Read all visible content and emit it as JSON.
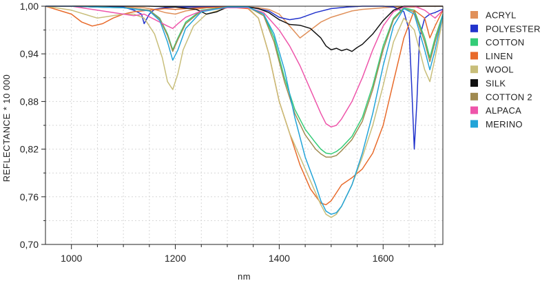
{
  "chart_data": {
    "type": "line",
    "xlabel": "nm",
    "ylabel": "REFLECTANCE * 10 000",
    "xlim": [
      950,
      1715
    ],
    "ylim": [
      0.7,
      1.0
    ],
    "xticks": [
      1000,
      1200,
      1400,
      1600
    ],
    "xtick_labels": [
      "1000",
      "1200",
      "1400",
      "1600"
    ],
    "yticks": [
      0.7,
      0.76,
      0.82,
      0.88,
      0.94,
      1.0
    ],
    "ytick_labels": [
      "0,70",
      "0,76",
      "0,82",
      "0,88",
      "0,94",
      "1,00"
    ],
    "grid": true,
    "legend_position": "right",
    "series": [
      {
        "name": "ACRYL",
        "color": "#e0905a",
        "x": [
          950,
          1000,
          1050,
          1100,
          1140,
          1160,
          1180,
          1200,
          1220,
          1260,
          1300,
          1340,
          1360,
          1380,
          1400,
          1420,
          1440,
          1460,
          1480,
          1500,
          1520,
          1540,
          1560,
          1580,
          1600,
          1620,
          1640,
          1660,
          1680,
          1700,
          1715
        ],
        "y": [
          1.0,
          1.0,
          1.0,
          0.999,
          0.998,
          0.996,
          0.992,
          0.99,
          0.994,
          0.998,
          0.999,
          0.999,
          0.998,
          0.996,
          0.99,
          0.975,
          0.96,
          0.97,
          0.98,
          0.986,
          0.99,
          0.994,
          0.996,
          0.997,
          0.998,
          0.999,
          0.999,
          0.999,
          1.0,
          1.0,
          1.0
        ]
      },
      {
        "name": "POLYESTER",
        "color": "#2233cc",
        "x": [
          950,
          1000,
          1050,
          1100,
          1120,
          1135,
          1140,
          1150,
          1160,
          1180,
          1200,
          1220,
          1240,
          1300,
          1350,
          1380,
          1400,
          1420,
          1440,
          1470,
          1500,
          1530,
          1560,
          1600,
          1620,
          1640,
          1650,
          1655,
          1660,
          1665,
          1670,
          1680,
          1690,
          1700,
          1710,
          1715
        ],
        "y": [
          1.0,
          1.0,
          0.999,
          0.999,
          0.995,
          0.99,
          0.978,
          0.99,
          0.996,
          0.998,
          0.999,
          0.999,
          0.999,
          0.999,
          0.998,
          0.994,
          0.986,
          0.983,
          0.985,
          0.992,
          0.997,
          0.999,
          1.0,
          1.0,
          0.999,
          0.993,
          0.97,
          0.9,
          0.82,
          0.88,
          0.96,
          0.985,
          0.99,
          0.992,
          0.995,
          0.996
        ]
      },
      {
        "name": "COTTON",
        "color": "#33cc77",
        "x": [
          950,
          1000,
          1050,
          1100,
          1150,
          1170,
          1185,
          1195,
          1205,
          1220,
          1250,
          1300,
          1340,
          1370,
          1390,
          1410,
          1430,
          1450,
          1470,
          1480,
          1490,
          1500,
          1510,
          1520,
          1540,
          1560,
          1580,
          1600,
          1620,
          1640,
          1660,
          1680,
          1690,
          1700,
          1715
        ],
        "y": [
          1.0,
          1.0,
          0.999,
          0.998,
          0.995,
          0.985,
          0.965,
          0.945,
          0.96,
          0.98,
          0.995,
          0.999,
          0.999,
          0.99,
          0.96,
          0.91,
          0.87,
          0.845,
          0.828,
          0.82,
          0.815,
          0.814,
          0.817,
          0.822,
          0.836,
          0.86,
          0.9,
          0.95,
          0.985,
          0.998,
          0.995,
          0.96,
          0.935,
          0.96,
          0.99
        ]
      },
      {
        "name": "LINEN",
        "color": "#e86a2a",
        "x": [
          950,
          1000,
          1020,
          1040,
          1060,
          1080,
          1100,
          1120,
          1150,
          1180,
          1200,
          1220,
          1250,
          1300,
          1340,
          1360,
          1380,
          1400,
          1420,
          1440,
          1460,
          1480,
          1490,
          1500,
          1510,
          1520,
          1540,
          1560,
          1580,
          1600,
          1620,
          1640,
          1660,
          1680,
          1690,
          1700,
          1715
        ],
        "y": [
          1.0,
          0.99,
          0.98,
          0.975,
          0.978,
          0.985,
          0.99,
          0.993,
          0.995,
          0.997,
          0.996,
          0.997,
          0.998,
          0.999,
          0.997,
          0.985,
          0.94,
          0.88,
          0.84,
          0.8,
          0.77,
          0.752,
          0.75,
          0.755,
          0.765,
          0.775,
          0.784,
          0.795,
          0.815,
          0.85,
          0.905,
          0.96,
          0.995,
          0.985,
          0.96,
          0.975,
          0.995
        ]
      },
      {
        "name": "WOOL",
        "color": "#c8be7a",
        "x": [
          950,
          1000,
          1050,
          1100,
          1120,
          1140,
          1160,
          1175,
          1185,
          1195,
          1205,
          1215,
          1235,
          1260,
          1300,
          1340,
          1360,
          1380,
          1400,
          1420,
          1440,
          1460,
          1480,
          1490,
          1500,
          1510,
          1520,
          1540,
          1560,
          1580,
          1600,
          1620,
          1640,
          1660,
          1680,
          1690,
          1700,
          1715
        ],
        "y": [
          1.0,
          0.995,
          0.985,
          0.99,
          0.99,
          0.985,
          0.965,
          0.935,
          0.905,
          0.895,
          0.915,
          0.945,
          0.975,
          0.99,
          0.998,
          0.998,
          0.985,
          0.94,
          0.88,
          0.84,
          0.81,
          0.78,
          0.75,
          0.738,
          0.734,
          0.738,
          0.748,
          0.775,
          0.81,
          0.85,
          0.9,
          0.955,
          0.985,
          0.97,
          0.92,
          0.905,
          0.935,
          0.985
        ]
      },
      {
        "name": "SILK",
        "color": "#111111",
        "x": [
          950,
          1000,
          1050,
          1100,
          1150,
          1200,
          1240,
          1260,
          1280,
          1300,
          1320,
          1340,
          1360,
          1380,
          1400,
          1420,
          1440,
          1460,
          1480,
          1490,
          1500,
          1510,
          1520,
          1530,
          1540,
          1550,
          1560,
          1580,
          1600,
          1620,
          1640,
          1660,
          1680,
          1700,
          1715
        ],
        "y": [
          1.0,
          1.0,
          1.0,
          1.0,
          1.0,
          0.999,
          0.996,
          0.99,
          0.993,
          0.999,
          0.998,
          0.999,
          0.997,
          0.992,
          0.983,
          0.977,
          0.976,
          0.972,
          0.96,
          0.95,
          0.945,
          0.947,
          0.944,
          0.946,
          0.943,
          0.948,
          0.952,
          0.965,
          0.982,
          0.995,
          1.0,
          1.0,
          1.0,
          1.0,
          1.0
        ]
      },
      {
        "name": "COTTON 2",
        "color": "#a08a50",
        "x": [
          950,
          1000,
          1050,
          1100,
          1150,
          1170,
          1185,
          1195,
          1205,
          1220,
          1250,
          1300,
          1340,
          1370,
          1390,
          1410,
          1430,
          1450,
          1470,
          1480,
          1490,
          1500,
          1510,
          1520,
          1540,
          1560,
          1580,
          1600,
          1620,
          1640,
          1660,
          1680,
          1690,
          1700,
          1715
        ],
        "y": [
          1.0,
          1.0,
          0.999,
          0.998,
          0.995,
          0.984,
          0.963,
          0.943,
          0.958,
          0.978,
          0.994,
          0.999,
          0.999,
          0.988,
          0.955,
          0.905,
          0.865,
          0.838,
          0.82,
          0.814,
          0.81,
          0.81,
          0.812,
          0.818,
          0.832,
          0.855,
          0.895,
          0.945,
          0.983,
          0.997,
          0.993,
          0.955,
          0.93,
          0.955,
          0.988
        ]
      },
      {
        "name": "ALPACA",
        "color": "#ee55aa",
        "x": [
          950,
          1000,
          1050,
          1100,
          1120,
          1140,
          1170,
          1185,
          1195,
          1205,
          1220,
          1250,
          1300,
          1340,
          1370,
          1400,
          1420,
          1440,
          1460,
          1480,
          1490,
          1500,
          1510,
          1520,
          1540,
          1560,
          1580,
          1600,
          1620,
          1640,
          1660,
          1680,
          1700,
          1715
        ],
        "y": [
          1.0,
          1.0,
          0.995,
          0.99,
          0.988,
          0.99,
          0.98,
          0.975,
          0.972,
          0.978,
          0.986,
          0.994,
          0.998,
          0.998,
          0.992,
          0.97,
          0.95,
          0.925,
          0.895,
          0.865,
          0.852,
          0.848,
          0.85,
          0.858,
          0.88,
          0.91,
          0.945,
          0.975,
          0.993,
          0.999,
          1.0,
          0.995,
          0.985,
          0.995
        ]
      },
      {
        "name": "MERINO",
        "color": "#22a4d8",
        "x": [
          950,
          1000,
          1050,
          1100,
          1150,
          1170,
          1185,
          1195,
          1205,
          1220,
          1250,
          1300,
          1340,
          1370,
          1390,
          1410,
          1430,
          1450,
          1470,
          1480,
          1490,
          1500,
          1510,
          1520,
          1540,
          1560,
          1580,
          1600,
          1620,
          1640,
          1660,
          1680,
          1690,
          1700,
          1715
        ],
        "y": [
          1.0,
          1.0,
          0.999,
          0.998,
          0.994,
          0.982,
          0.955,
          0.932,
          0.945,
          0.972,
          0.993,
          0.999,
          0.999,
          0.99,
          0.965,
          0.92,
          0.86,
          0.81,
          0.775,
          0.755,
          0.742,
          0.738,
          0.74,
          0.748,
          0.775,
          0.815,
          0.865,
          0.925,
          0.975,
          0.997,
          0.99,
          0.945,
          0.92,
          0.945,
          0.99
        ]
      }
    ]
  }
}
